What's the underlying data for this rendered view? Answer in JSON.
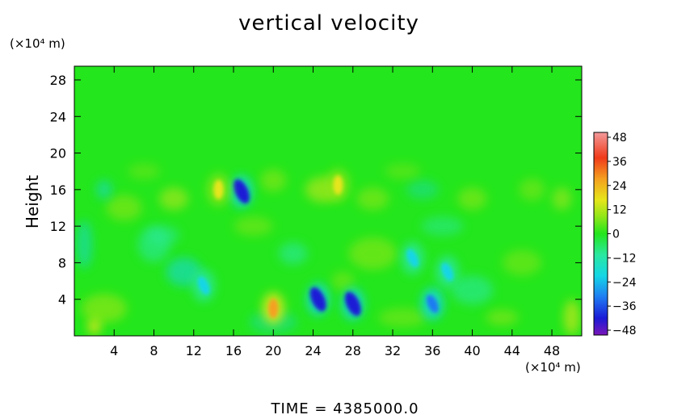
{
  "chart_data": {
    "type": "heatmap",
    "title": "vertical velocity",
    "ylabel": "Height",
    "xunit": "(×10⁴ m)",
    "yunit": "(×10⁴ m)",
    "footer": "TIME  =  4385000.0",
    "x_ticks": [
      "4",
      "8",
      "12",
      "16",
      "20",
      "24",
      "28",
      "32",
      "36",
      "40",
      "44",
      "48"
    ],
    "y_ticks": [
      "4",
      "8",
      "12",
      "16",
      "20",
      "24",
      "28"
    ],
    "xlim": [
      0,
      51
    ],
    "ylim": [
      0,
      29.5
    ],
    "colorbar": {
      "ticks": [
        "48",
        "36",
        "24",
        "12",
        "0",
        "−12",
        "−24",
        "−36",
        "−48"
      ],
      "range": [
        -48,
        48
      ],
      "stops": [
        {
          "v": -48,
          "color": "#7a16b8"
        },
        {
          "v": -40,
          "color": "#1a1ad6"
        },
        {
          "v": -30,
          "color": "#1f7cf2"
        },
        {
          "v": -20,
          "color": "#14d6e6"
        },
        {
          "v": -10,
          "color": "#2be8a0"
        },
        {
          "v": 0,
          "color": "#23e61c"
        },
        {
          "v": 8,
          "color": "#8fe619"
        },
        {
          "v": 16,
          "color": "#e6e61a"
        },
        {
          "v": 26,
          "color": "#f5a020"
        },
        {
          "v": 36,
          "color": "#f03a1a"
        },
        {
          "v": 48,
          "color": "#f29a9a"
        }
      ]
    },
    "features": [
      {
        "x": 16.8,
        "y": 15.8,
        "value": -38
      },
      {
        "x": 20.0,
        "y": 3.0,
        "value": 28
      },
      {
        "x": 24.5,
        "y": 4.0,
        "value": -36
      },
      {
        "x": 28.0,
        "y": 3.5,
        "value": -40
      },
      {
        "x": 36.0,
        "y": 3.5,
        "value": -30
      },
      {
        "x": 13.0,
        "y": 5.5,
        "value": -22
      },
      {
        "x": 14.5,
        "y": 16.0,
        "value": 18
      },
      {
        "x": 26.5,
        "y": 16.5,
        "value": 14
      },
      {
        "x": 34.0,
        "y": 8.5,
        "value": -18
      },
      {
        "x": 37.5,
        "y": 7.0,
        "value": -16
      }
    ]
  }
}
